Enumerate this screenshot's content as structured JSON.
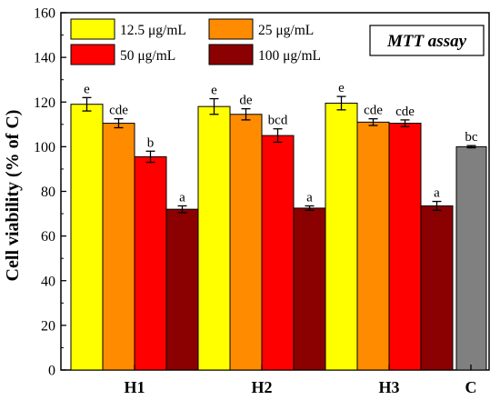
{
  "chart_data": {
    "type": "bar",
    "title": "",
    "xlabel": "",
    "ylabel": "Cell viability (% of C)",
    "ylim": [
      0,
      160
    ],
    "yticks": [
      0,
      20,
      40,
      60,
      80,
      100,
      120,
      140,
      160
    ],
    "grid": false,
    "legend_position": "top-left",
    "annotation": "MTT assay",
    "categories": [
      "H1",
      "H2",
      "H3",
      "C"
    ],
    "series": [
      {
        "name": "12.5 μg/mL",
        "color": "#ffff00",
        "values": [
          119,
          118,
          119.5,
          null
        ],
        "errors": [
          3,
          3.5,
          3,
          null
        ],
        "letters": [
          "e",
          "e",
          "e",
          null
        ]
      },
      {
        "name": "25 μg/mL",
        "color": "#ff8c00",
        "values": [
          110.5,
          114.5,
          111,
          null
        ],
        "errors": [
          2,
          2.5,
          1.5,
          null
        ],
        "letters": [
          "cde",
          "de",
          "cde",
          null
        ]
      },
      {
        "name": "50 μg/mL",
        "color": "#ff0000",
        "values": [
          95.5,
          105,
          110.5,
          null
        ],
        "errors": [
          2.5,
          3,
          1.5,
          null
        ],
        "letters": [
          "b",
          "bcd",
          "cde",
          null
        ]
      },
      {
        "name": "100 μg/mL",
        "color": "#8b0000",
        "values": [
          72,
          72.5,
          73.5,
          null
        ],
        "errors": [
          1.5,
          1,
          2,
          null
        ],
        "letters": [
          "a",
          "a",
          "a",
          null
        ]
      }
    ],
    "control": {
      "category": "C",
      "color": "#808080",
      "value": 100,
      "error": 0.5,
      "letter": "bc"
    }
  }
}
